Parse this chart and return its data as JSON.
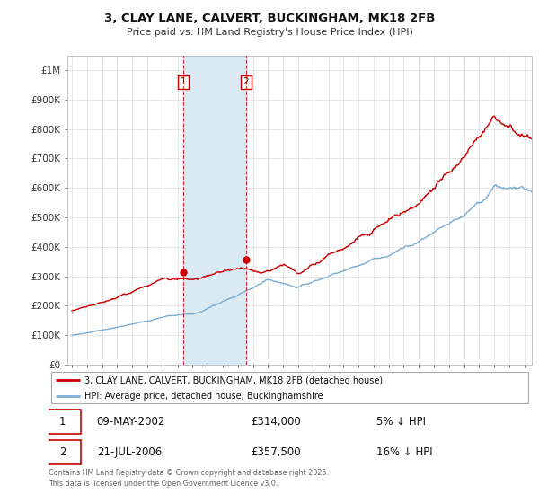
{
  "title": "3, CLAY LANE, CALVERT, BUCKINGHAM, MK18 2FB",
  "subtitle": "Price paid vs. HM Land Registry's House Price Index (HPI)",
  "legend_property": "3, CLAY LANE, CALVERT, BUCKINGHAM, MK18 2FB (detached house)",
  "legend_hpi": "HPI: Average price, detached house, Buckinghamshire",
  "footer": "Contains HM Land Registry data © Crown copyright and database right 2025.\nThis data is licensed under the Open Government Licence v3.0.",
  "sale1_date": 2002.36,
  "sale1_price": 314000,
  "sale1_label": "09-MAY-2002",
  "sale1_pct": "5% ↓ HPI",
  "sale2_date": 2006.55,
  "sale2_price": 357500,
  "sale2_label": "21-JUL-2006",
  "sale2_pct": "16% ↓ HPI",
  "ylim": [
    0,
    1050000
  ],
  "xlim_start": 1994.7,
  "xlim_end": 2025.5,
  "property_color": "#cc0000",
  "hpi_color": "#7aadd4",
  "shade_color": "#daeaf5",
  "grid_color": "#dddddd",
  "bg_color": "#ffffff"
}
